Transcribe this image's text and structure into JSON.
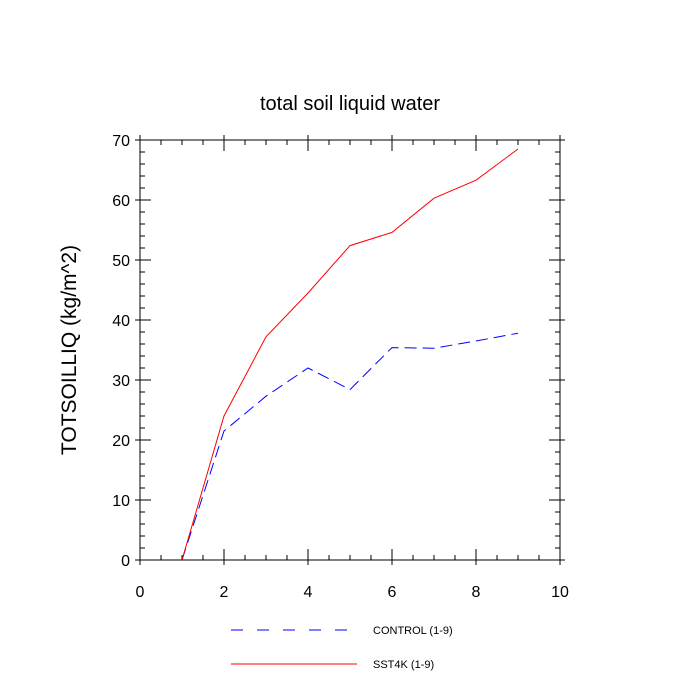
{
  "chart_data": {
    "type": "line",
    "title": "total soil liquid water",
    "xlabel": "",
    "ylabel": "TOTSOILLIQ  (kg/m^2)",
    "xlim": [
      0,
      10
    ],
    "ylim": [
      0,
      70
    ],
    "xticks": [
      0,
      2,
      4,
      6,
      8,
      10
    ],
    "yticks": [
      0,
      10,
      20,
      30,
      40,
      50,
      60,
      70
    ],
    "x_minor_step": 0.5,
    "y_minor_step": 2,
    "grid": false,
    "legend_position": "bottom-center",
    "series": [
      {
        "name": "CONTROL (1-9)",
        "color": "#0000ff",
        "style": "dashed",
        "x": [
          1,
          2,
          3,
          4,
          5,
          6,
          7,
          8,
          9
        ],
        "values": [
          0,
          21.5,
          27.3,
          32.0,
          28.4,
          35.4,
          35.3,
          36.5,
          37.8
        ]
      },
      {
        "name": "SST4K (1-9)",
        "color": "#ff0000",
        "style": "solid",
        "x": [
          1,
          2,
          3,
          4,
          5,
          6,
          7,
          8,
          9
        ],
        "values": [
          0,
          24.0,
          37.2,
          44.5,
          52.4,
          54.6,
          60.3,
          63.3,
          68.5
        ]
      }
    ]
  }
}
